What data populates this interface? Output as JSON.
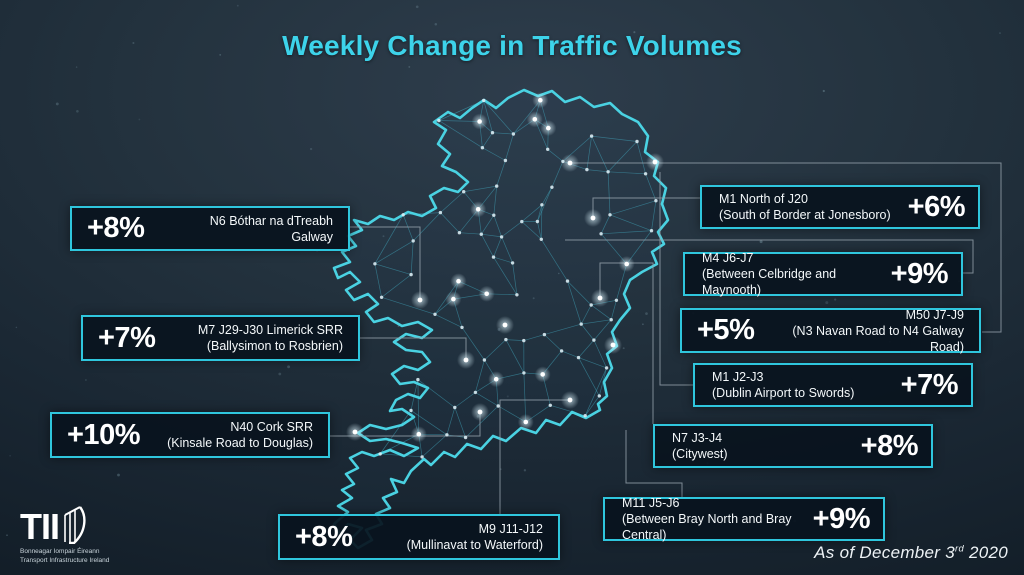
{
  "title": "Weekly Change in Traffic Volumes",
  "footer": {
    "as_of_prefix": "As of December 3",
    "as_of_sup": "rd",
    "as_of_suffix": " 2020"
  },
  "logo": {
    "acronym": "TII",
    "tagline_irish": "Bonneagar Iompair Éireann",
    "tagline_english": "Transport Infrastructure Ireland"
  },
  "colors": {
    "accent_cyan": "#3DD3EA",
    "box_border": "#2FC6DD",
    "box_background": "#09131E",
    "map_outline": "#4AD2E2",
    "connector_gray": "#97A4AE",
    "background_dark": "#121D27"
  },
  "callouts": [
    {
      "id": "n6-galway",
      "percent": "+8%",
      "line1": "N6 Bóthar na dTreabh",
      "line2": "Galway",
      "percent_side": "left"
    },
    {
      "id": "m7-limerick",
      "percent": "+7%",
      "line1": "M7 J29-J30 Limerick SRR",
      "line2": "(Ballysimon to Rosbrien)",
      "percent_side": "left"
    },
    {
      "id": "n40-cork",
      "percent": "+10%",
      "line1": "N40 Cork SRR",
      "line2": "(Kinsale Road to Douglas)",
      "percent_side": "left"
    },
    {
      "id": "m9-waterford",
      "percent": "+8%",
      "line1": "M9 J11-J12",
      "line2": "(Mullinavat to Waterford)",
      "percent_side": "left"
    },
    {
      "id": "m1-north-j20",
      "percent": "+6%",
      "line1": "M1 North of J20",
      "line2": "(South of Border at Jonesboro)",
      "percent_side": "right"
    },
    {
      "id": "m4-j6-j7",
      "percent": "+9%",
      "line1": "M4 J6-J7",
      "line2": "(Between Celbridge and Maynooth)",
      "percent_side": "right"
    },
    {
      "id": "m50-j7-j9",
      "percent": "+5%",
      "line1": "M50 J7-J9",
      "line2": "(N3 Navan Road to N4 Galway Road)",
      "percent_side": "left"
    },
    {
      "id": "m1-j2-j3",
      "percent": "+7%",
      "line1": "M1 J2-J3",
      "line2": "(Dublin Airport to Swords)",
      "percent_side": "right"
    },
    {
      "id": "n7-citywest",
      "percent": "+8%",
      "line1": "N7 J3-J4",
      "line2": "(Citywest)",
      "percent_side": "right"
    },
    {
      "id": "m11-bray",
      "percent": "+9%",
      "line1": "M11 J5-J6",
      "line2": "(Between Bray North and Bray Central)",
      "percent_side": "right"
    }
  ]
}
